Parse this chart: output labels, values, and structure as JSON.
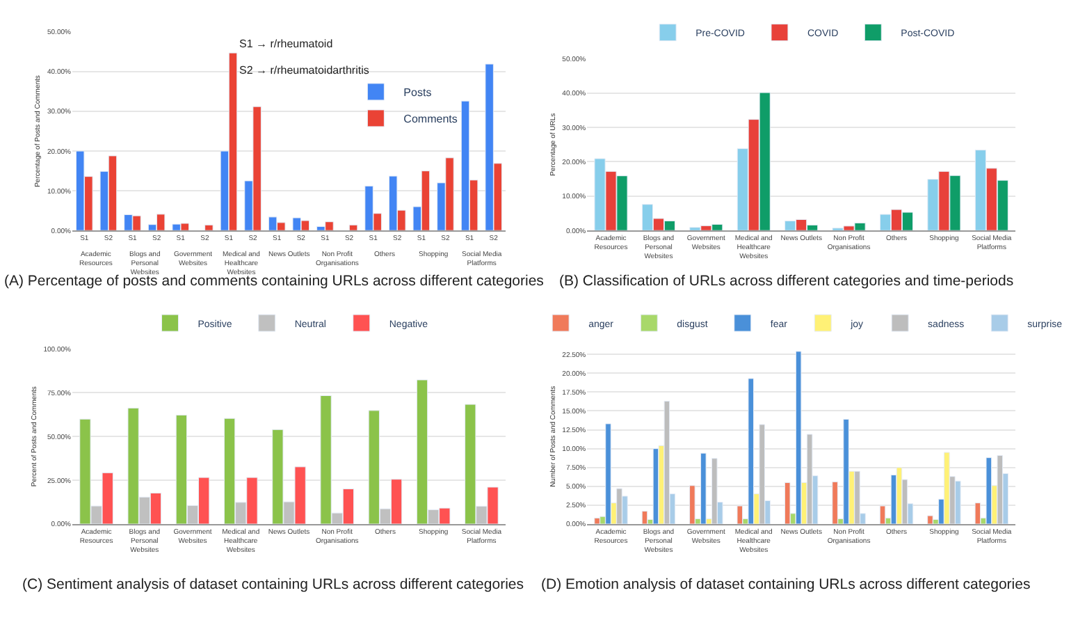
{
  "chart_data": [
    {
      "type": "bar",
      "title": "(A) Percentage of posts and comments containing URLs across different categories",
      "ylabel": "Percentage of Posts and Comments",
      "categories": [
        "S1",
        "S2",
        "S1",
        "S2",
        "S1",
        "S2",
        "S1",
        "S2",
        "S1",
        "S2",
        "S1",
        "S2",
        "S1",
        "S2",
        "S1",
        "S2",
        "S1",
        "S2"
      ],
      "series": [
        {
          "name": "Posts",
          "color": "#4285f4",
          "values": [
            20.0,
            14.9,
            4.0,
            1.5,
            1.6,
            null,
            20.0,
            12.5,
            3.4,
            3.2,
            1.0,
            null,
            11.2,
            13.7,
            6.0,
            12.0,
            32.6,
            41.9
          ]
        },
        {
          "name": "Comments",
          "color": "#ea4335",
          "values": [
            13.6,
            18.8,
            3.7,
            4.1,
            1.8,
            1.4,
            44.7,
            31.2,
            2.0,
            2.5,
            2.2,
            1.4,
            4.3,
            5.1,
            15.0,
            18.3,
            12.7,
            16.9
          ]
        }
      ],
      "annotations": [
        "S1 → r/rheumatoid",
        "S2 → r/rheumatoidarthritis",
        "Academic Resources",
        "Blogs and Personal Websites",
        "Government Websites",
        "Medical and Healthcare Websites",
        "News Outlets",
        "Non Profit Organisations",
        "Others",
        "Shopping",
        "Social Media Platforms"
      ],
      "ylim": [
        0,
        50
      ],
      "yticks": [
        {
          "value": 0,
          "label": "0.00%"
        },
        {
          "value": 10,
          "label": "10.00%"
        },
        {
          "value": 20,
          "label": "20.00%"
        },
        {
          "value": 30,
          "label": "30.00%"
        },
        {
          "value": 40,
          "label": "40.00%"
        },
        {
          "value": 50,
          "label": "50.00%"
        }
      ],
      "grid": "y",
      "legend": "top right"
    },
    {
      "type": "bar",
      "title": "(B) Classification of URLs across different categories and time-periods",
      "ylabel": "Percentage of URLs",
      "categories": [
        "Academic Resources",
        "Blogs and Personal Websites",
        "Government Websites",
        "Medical and Healthcare Websites",
        "News Outlets",
        "Non Profit Organisations",
        "Others",
        "Shopping",
        "Social Media Platforms"
      ],
      "series": [
        {
          "name": "Pre-COVID",
          "color": "#87ceeb",
          "values": [
            20.9,
            7.6,
            0.9,
            23.8,
            2.8,
            0.7,
            4.7,
            14.9,
            23.4
          ]
        },
        {
          "name": "COVID",
          "color": "#e8413a",
          "values": [
            17.2,
            3.5,
            1.4,
            32.3,
            3.2,
            1.3,
            6.1,
            17.2,
            18.1
          ]
        },
        {
          "name": "Post-COVID",
          "color": "#0f9d68",
          "values": [
            15.9,
            2.8,
            1.8,
            40.1,
            1.6,
            2.2,
            5.3,
            16.0,
            14.6
          ]
        }
      ],
      "ylim": [
        0,
        50
      ],
      "yticks": [
        {
          "value": 0,
          "label": "0.00%"
        },
        {
          "value": 10,
          "label": "10.00%"
        },
        {
          "value": 20,
          "label": "20.00%"
        },
        {
          "value": 30,
          "label": "30.00%"
        },
        {
          "value": 40,
          "label": "40.00%"
        },
        {
          "value": 50,
          "label": "50.00%"
        }
      ],
      "grid": "y",
      "legend": "top"
    },
    {
      "type": "bar",
      "title": "(C) Sentiment analysis of dataset containing URLs across different categories",
      "ylabel": "Percent of Posts and Comments",
      "categories": [
        "Academic Resources",
        "Blogs and Personal Websites",
        "Government Websites",
        "Medical and Healthcare Websites",
        "News Outlets",
        "Non Profit Organisations",
        "Others",
        "Shopping",
        "Social Media Platforms"
      ],
      "series": [
        {
          "name": "Positive",
          "color": "#8bc34a",
          "values": [
            60.0,
            66.3,
            62.3,
            60.4,
            54.0,
            73.4,
            64.9,
            82.4,
            68.4
          ]
        },
        {
          "name": "Neutral",
          "color": "#c0c0c0",
          "values": [
            10.3,
            15.4,
            10.6,
            12.4,
            12.7,
            6.3,
            8.7,
            8.2,
            10.2
          ]
        },
        {
          "name": "Negative",
          "color": "#ff5252",
          "values": [
            29.3,
            17.7,
            26.6,
            26.6,
            32.7,
            20.1,
            25.6,
            9.1,
            21.1
          ]
        }
      ],
      "ylim": [
        0,
        100
      ],
      "yticks": [
        {
          "value": 0,
          "label": "0.00%"
        },
        {
          "value": 25,
          "label": "25.00%"
        },
        {
          "value": 50,
          "label": "50.00%"
        },
        {
          "value": 75,
          "label": "75.00%"
        },
        {
          "value": 100,
          "label": "100.00%"
        }
      ],
      "grid": "y",
      "legend": "top"
    },
    {
      "type": "bar",
      "title": "(D) Emotion analysis of dataset containing URLs across different categories",
      "ylabel": "Number of Posts and Comments",
      "categories": [
        "Academic Resources",
        "Blogs and Personal Websites",
        "Government Websites",
        "Medical and Healthcare Websites",
        "News Outlets",
        "Non Profit Organisations",
        "Others",
        "Shopping",
        "Social Media Platforms"
      ],
      "series": [
        {
          "name": "anger",
          "color": "#f07a5a",
          "values": [
            0.8,
            1.7,
            5.1,
            2.4,
            5.5,
            5.6,
            2.4,
            1.1,
            2.8
          ]
        },
        {
          "name": "disgust",
          "color": "#a8d86a",
          "values": [
            1.0,
            0.6,
            0.7,
            0.7,
            1.4,
            0.7,
            0.8,
            0.6,
            0.8
          ]
        },
        {
          "name": "fear",
          "color": "#4a90d9",
          "values": [
            13.3,
            10.0,
            9.4,
            19.3,
            22.9,
            13.9,
            6.5,
            3.3,
            8.8
          ]
        },
        {
          "name": "joy",
          "color": "#fff176",
          "values": [
            2.8,
            10.4,
            0.7,
            4.0,
            5.5,
            7.0,
            7.5,
            9.5,
            5.1
          ]
        },
        {
          "name": "sadness",
          "color": "#bdbdbd",
          "values": [
            4.7,
            16.3,
            8.7,
            13.2,
            11.9,
            7.0,
            5.9,
            6.3,
            9.1
          ]
        },
        {
          "name": "surprise",
          "color": "#a8cce8",
          "values": [
            3.7,
            4.0,
            2.9,
            3.1,
            6.4,
            1.4,
            2.7,
            5.7,
            6.7
          ]
        }
      ],
      "ylim": [
        0,
        23.2
      ],
      "yticks": [
        {
          "value": 0,
          "label": "0.00%"
        },
        {
          "value": 2.5,
          "label": "2.50%"
        },
        {
          "value": 5,
          "label": "5.00%"
        },
        {
          "value": 7.5,
          "label": "7.50%"
        },
        {
          "value": 10,
          "label": "10.00%"
        },
        {
          "value": 12.5,
          "label": "12.50%"
        },
        {
          "value": 15,
          "label": "15.00%"
        },
        {
          "value": 17.5,
          "label": "17.50%"
        },
        {
          "value": 20,
          "label": "20.00%"
        },
        {
          "value": 22.5,
          "label": "22.50%"
        }
      ],
      "grid": "y",
      "legend": "top"
    }
  ]
}
